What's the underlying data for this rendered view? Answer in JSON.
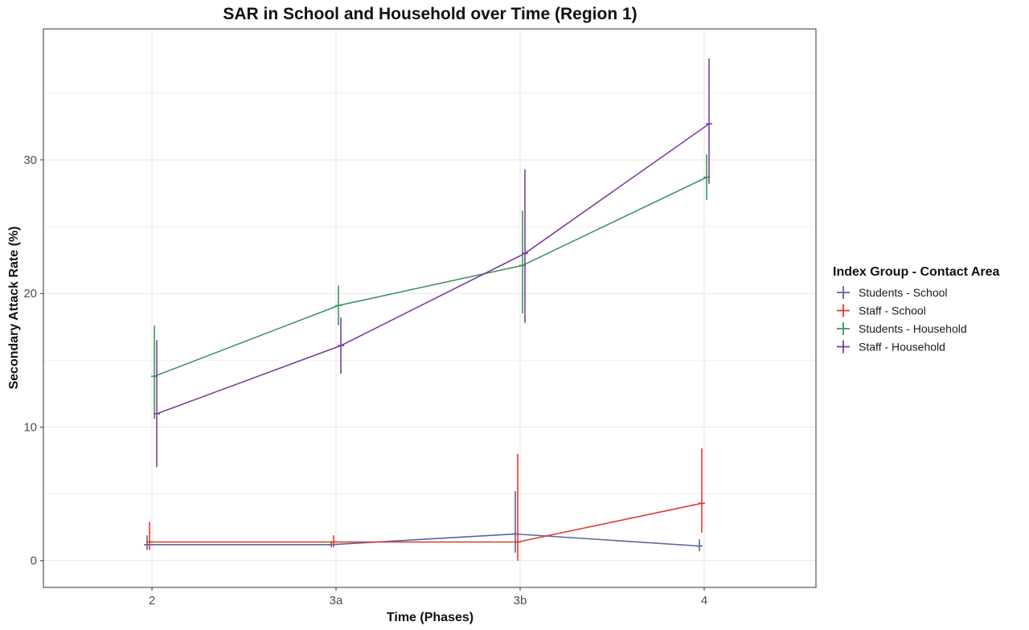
{
  "chart_data": {
    "type": "line",
    "title": "SAR in School and Household over Time (Region 1)",
    "xlabel": "Time (Phases)",
    "ylabel": "Secondary Attack Rate (%)",
    "categories": [
      "2",
      "3a",
      "3b",
      "4"
    ],
    "yticks": [
      0,
      10,
      20,
      30
    ],
    "ylim": [
      -2,
      39.8
    ],
    "grid": true,
    "legend": {
      "title": "Index Group - Contact Area",
      "position": "right"
    },
    "series": [
      {
        "name": "Students - School",
        "color": "#5a65a1",
        "values": [
          1.2,
          1.2,
          2.0,
          1.1
        ],
        "error_bars": [
          [
            0.8,
            1.9
          ],
          [
            1.0,
            1.4
          ],
          [
            0.6,
            5.2
          ],
          [
            0.7,
            1.6
          ]
        ]
      },
      {
        "name": "Staff - School",
        "color": "#dd3b2f",
        "values": [
          1.4,
          1.4,
          1.4,
          4.3
        ],
        "error_bars": [
          [
            0.8,
            2.9
          ],
          [
            1.0,
            1.9
          ],
          [
            0.0,
            8.0
          ],
          [
            2.1,
            8.4
          ]
        ]
      },
      {
        "name": "Students - Household",
        "color": "#3e9560",
        "values": [
          13.8,
          19.1,
          22.1,
          28.7
        ],
        "error_bars": [
          [
            10.6,
            17.6
          ],
          [
            17.6,
            20.6
          ],
          [
            18.5,
            26.2
          ],
          [
            27.0,
            30.4
          ]
        ]
      },
      {
        "name": "Staff - Household",
        "color": "#7d3f98",
        "values": [
          11.0,
          16.1,
          23.0,
          32.7
        ],
        "error_bars": [
          [
            7.0,
            16.5
          ],
          [
            14.0,
            18.2
          ],
          [
            17.8,
            29.3
          ],
          [
            28.2,
            37.6
          ]
        ]
      }
    ]
  }
}
